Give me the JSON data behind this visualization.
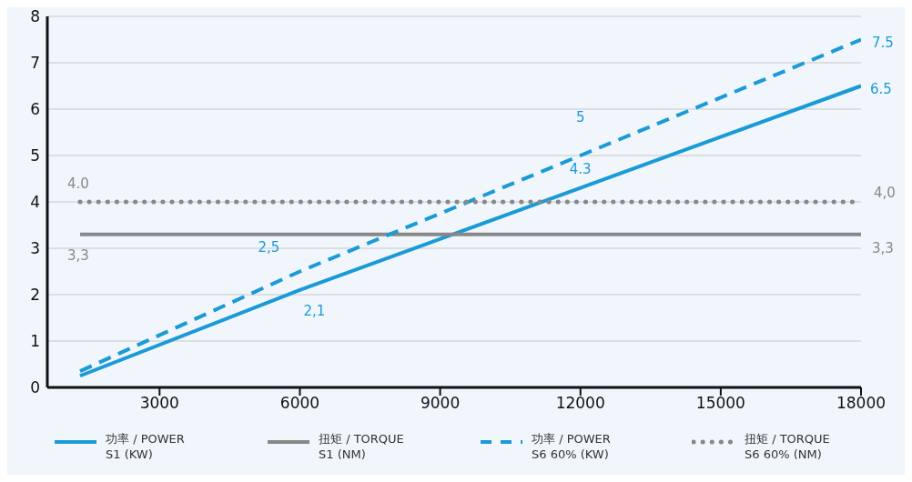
{
  "chart_data": {
    "type": "line",
    "xlim": [
      600,
      18000
    ],
    "xticks": [
      3000,
      6000,
      9000,
      12000,
      15000,
      18000
    ],
    "ylim": [
      0,
      8
    ],
    "yticks": [
      0,
      1,
      2,
      3,
      4,
      5,
      6,
      7,
      8
    ],
    "grid": "y",
    "legend": "bottom",
    "marker": "none",
    "series": [
      {
        "name": "功率 / POWER\nS1 (KW)",
        "color": "#1a9ad6",
        "line_style": "solid",
        "x": [
          1300,
          6000,
          12000,
          18000
        ],
        "values": [
          0.25,
          2.1,
          4.3,
          6.5
        ],
        "value_labels": [
          null,
          "2,1",
          "4.3",
          "6.5"
        ]
      },
      {
        "name": "扭矩 /  TORQUE\nS1 (NM)",
        "color": "#888888",
        "line_style": "solid",
        "x": [
          1300,
          18000
        ],
        "values": [
          3.3,
          3.3
        ],
        "value_labels": [
          "3,3",
          "3,3"
        ]
      },
      {
        "name": "功率 / POWER\nS6 60% (KW)",
        "color": "#1a9ad6",
        "line_style": "dashed",
        "x": [
          1300,
          6000,
          12000,
          18000
        ],
        "values": [
          0.35,
          2.5,
          5,
          7.5
        ],
        "value_labels": [
          null,
          "2,5",
          "5",
          "7.5"
        ]
      },
      {
        "name": "扭矩 /  TORQUE\nS6 60% (NM)",
        "color": "#888888",
        "line_style": "dotted",
        "x": [
          1300,
          18000
        ],
        "values": [
          4,
          4
        ],
        "value_labels": [
          "4.0",
          "4,0"
        ]
      }
    ]
  }
}
